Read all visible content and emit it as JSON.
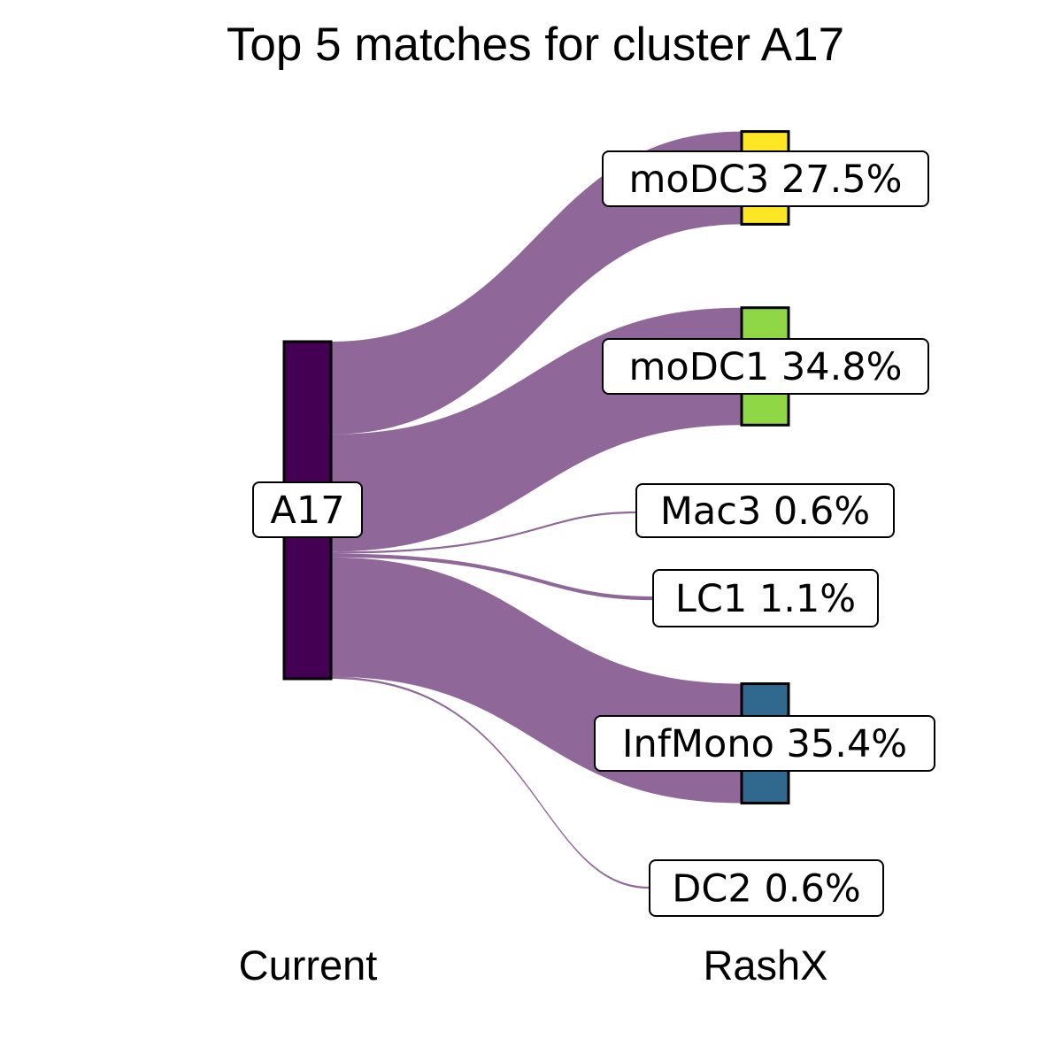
{
  "title": "Top 5 matches for cluster A17",
  "axis_labels": {
    "left": "Current",
    "right": "RashX"
  },
  "colors": {
    "flow": "#440154",
    "source_node": "#440154",
    "moDC3": "#FDE725",
    "moDC1": "#8FD744",
    "InfMono": "#31688E"
  },
  "chart_data": {
    "type": "sankey",
    "source": {
      "name": "A17",
      "label": "A17",
      "color": "#440154"
    },
    "targets": [
      {
        "name": "moDC3",
        "label": "moDC3 27.5%",
        "percent": 27.5,
        "color": "#FDE725",
        "top_match": true
      },
      {
        "name": "moDC1",
        "label": "moDC1 34.8%",
        "percent": 34.8,
        "color": "#8FD744",
        "top_match": true
      },
      {
        "name": "Mac3",
        "label": "Mac3 0.6%",
        "percent": 0.6,
        "color": null,
        "top_match": false
      },
      {
        "name": "LC1",
        "label": "LC1 1.1%",
        "percent": 1.1,
        "color": null,
        "top_match": false
      },
      {
        "name": "InfMono",
        "label": "InfMono 35.4%",
        "percent": 35.4,
        "color": "#31688E",
        "top_match": true
      },
      {
        "name": "DC2",
        "label": "DC2 0.6%",
        "percent": 0.6,
        "color": null,
        "top_match": false
      }
    ]
  }
}
